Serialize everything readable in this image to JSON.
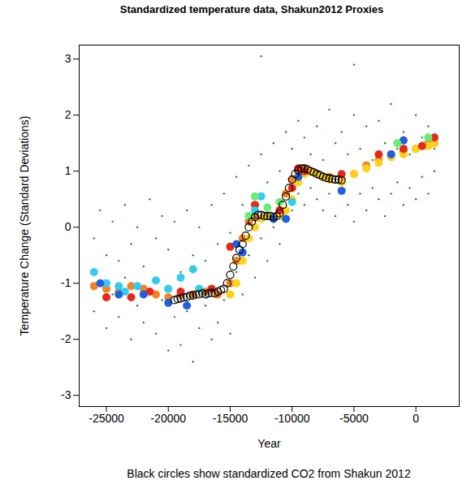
{
  "chart_data": {
    "type": "scatter",
    "title": "Standardized temperature data, Shakun2012 Proxies",
    "x_label": "Year",
    "y_label": "Temperature Change (Standard Deviations)",
    "caption": "Black circles show standardized CO2 from Shakun 2012",
    "xlim": [
      -27200,
      3500
    ],
    "ylim": [
      -3.2,
      3.25
    ],
    "xticks": [
      -25000,
      -20000,
      -15000,
      -10000,
      -5000,
      0
    ],
    "yticks": [
      -3,
      -2,
      -1,
      0,
      1,
      2,
      3
    ],
    "grid": false,
    "series": [
      {
        "color": "#1a8a1a",
        "marker": "dot",
        "x": [
          -26000,
          -26000,
          -25500,
          -25500,
          -25000,
          -25000,
          -24500,
          -24500,
          -24000,
          -24000,
          -23500,
          -23500,
          -23000,
          -23000,
          -22500,
          -22500,
          -22000,
          -22000,
          -21500,
          -21500,
          -21000,
          -21000,
          -20500,
          -20500,
          -20000,
          -20000,
          -19500,
          -19500,
          -19000,
          -19000,
          -18500,
          -18500,
          -18000,
          -18000,
          -17500,
          -17500,
          -17000,
          -17000,
          -16500,
          -16500,
          -16000,
          -16000,
          -15500,
          -15500,
          -15000,
          -15000,
          -14500,
          -14500,
          -14000,
          -14000,
          -13500,
          -13500,
          -13000,
          -13000,
          -12500,
          -12500,
          -12000,
          -12000,
          -11500,
          -11500,
          -11000,
          -11000,
          -10500,
          -10500,
          -10000,
          -10000,
          -9500,
          -9500,
          -9000,
          -9000,
          -8500,
          -8500,
          -8000,
          -8000,
          -7500,
          -7500,
          -7000,
          -7000,
          -6500,
          -6500,
          -6000,
          -6000,
          -5500,
          -5500,
          -5000,
          -5000,
          -4500,
          -4500,
          -4000,
          -4000,
          -3500,
          -3500,
          -3000,
          -3000,
          -2500,
          -2500,
          -2000,
          -2000,
          -1500,
          -1500,
          -1000,
          -1000,
          -500,
          -500,
          0,
          0,
          500,
          500,
          1000,
          1000,
          1500,
          1500,
          -12500,
          -5000
        ],
        "values": [
          -0.2,
          -1.5,
          0.3,
          -1.0,
          -0.5,
          -1.8,
          0.1,
          -1.2,
          -0.6,
          -1.6,
          0.4,
          -0.9,
          -0.3,
          -2.0,
          0.0,
          -1.4,
          -0.7,
          -1.7,
          0.5,
          -1.1,
          -0.2,
          -1.9,
          0.2,
          -1.3,
          -0.4,
          -2.2,
          0.1,
          -1.6,
          -0.8,
          -2.1,
          0.3,
          -1.5,
          -0.5,
          -2.4,
          0.0,
          -1.8,
          -0.6,
          -1.4,
          0.4,
          -2.0,
          -0.3,
          -1.7,
          0.6,
          -1.3,
          -0.1,
          -1.9,
          0.9,
          -0.8,
          0.4,
          -1.2,
          1.1,
          -0.5,
          0.6,
          -0.9,
          1.3,
          -0.2,
          0.8,
          -0.6,
          1.5,
          0.0,
          1.0,
          -0.3,
          1.7,
          0.2,
          1.4,
          0.3,
          1.9,
          0.6,
          1.6,
          0.4,
          1.3,
          0.7,
          1.8,
          0.5,
          1.2,
          0.3,
          2.1,
          0.6,
          1.5,
          0.2,
          1.7,
          0.7,
          1.3,
          0.4,
          2.0,
          0.1,
          1.4,
          0.6,
          1.8,
          0.3,
          1.2,
          0.7,
          1.9,
          0.5,
          1.5,
          0.2,
          2.2,
          0.6,
          1.4,
          0.8,
          1.7,
          0.4,
          1.3,
          0.7,
          2.0,
          0.5,
          1.6,
          0.9,
          1.8,
          0.6,
          1.4,
          1.0,
          3.05,
          2.9
        ]
      },
      {
        "color": "#f5821f",
        "marker": "circle",
        "x": [
          -26000,
          -25000,
          -24000,
          -23000,
          -22000,
          -21000,
          -20000,
          -19000,
          -18000,
          -17000,
          -16000,
          -15000,
          -14500,
          -14000,
          -13500,
          -13000,
          -12000,
          -11000,
          -10500,
          -10000,
          -9500,
          -9000,
          -8500,
          -8000,
          -7000,
          -6000,
          -5000,
          -4000,
          -3000,
          -2000,
          -1000,
          0,
          1000,
          1500
        ],
        "values": [
          -1.05,
          -1.1,
          -1.15,
          -1.05,
          -1.1,
          -1.2,
          -1.25,
          -1.2,
          -1.2,
          -1.15,
          -1.2,
          -1.0,
          -0.6,
          -0.2,
          0.1,
          0.2,
          0.2,
          0.3,
          0.6,
          0.85,
          1.0,
          1.05,
          1.0,
          0.95,
          0.9,
          0.85,
          0.95,
          1.1,
          1.2,
          1.3,
          1.35,
          1.4,
          1.5,
          1.5
        ]
      },
      {
        "color": "#ffd21a",
        "marker": "circle",
        "x": [
          -15000,
          -14500,
          -14000,
          -13500,
          -13000,
          -12500,
          -12000,
          -11500,
          -11000,
          -10500,
          -10000,
          -9500,
          -9000,
          -8500,
          -8000,
          -7500,
          -7000,
          -6000,
          -5000,
          -4000,
          -3000,
          -2000,
          -1000,
          0,
          1000,
          1500
        ],
        "values": [
          -1.2,
          -1.0,
          -0.6,
          -0.2,
          0.0,
          0.15,
          0.2,
          0.15,
          0.2,
          0.3,
          0.5,
          0.8,
          0.95,
          1.0,
          0.95,
          0.9,
          0.85,
          0.8,
          0.95,
          1.05,
          1.15,
          1.25,
          1.3,
          1.4,
          1.45,
          1.5
        ]
      },
      {
        "color": "#e8271c",
        "marker": "circle",
        "x": [
          -25000,
          -23000,
          -21500,
          -19000,
          -16500,
          -15000,
          -13000,
          -11000,
          -10000,
          -9500,
          -9000,
          -6000,
          -3000,
          -1000,
          500,
          1500
        ],
        "values": [
          -1.25,
          -1.25,
          -1.15,
          -1.15,
          -1.1,
          -0.35,
          0.4,
          0.3,
          0.7,
          1.05,
          1.0,
          0.95,
          1.3,
          1.4,
          1.45,
          1.6
        ]
      },
      {
        "color": "#33ccee",
        "marker": "circle",
        "x": [
          -26000,
          -25000,
          -24000,
          -23500,
          -22500,
          -21000,
          -20000,
          -19000,
          -18000,
          -17500,
          -13000,
          -12500,
          -10000
        ],
        "values": [
          -0.8,
          -1.0,
          -1.05,
          -1.15,
          -1.05,
          -0.95,
          -1.1,
          -0.9,
          -0.75,
          -1.1,
          0.3,
          0.55,
          0.45
        ]
      },
      {
        "color": "#1f5fe0",
        "marker": "circle",
        "x": [
          -25500,
          -24000,
          -22000,
          -20000,
          -18500,
          -14500,
          -14000,
          -11500,
          -10500,
          -9500,
          -6000,
          -2000,
          -1000
        ],
        "values": [
          -1.0,
          -1.2,
          -1.2,
          -1.35,
          -1.4,
          -0.3,
          -0.45,
          0.15,
          0.15,
          0.9,
          0.65,
          1.3,
          1.55
        ]
      },
      {
        "color": "#66ee77",
        "marker": "circle",
        "x": [
          -13500,
          -13000,
          -12000,
          -11000,
          -1500,
          1000
        ],
        "values": [
          0.2,
          0.55,
          0.35,
          0.45,
          1.5,
          1.6
        ]
      },
      {
        "color": "#000000",
        "marker": "open_circle",
        "x": [
          -19500,
          -19250,
          -19000,
          -18750,
          -18500,
          -18250,
          -18000,
          -17750,
          -17500,
          -17250,
          -17000,
          -16750,
          -16500,
          -16250,
          -16000,
          -15750,
          -15500,
          -15250,
          -15000,
          -14750,
          -14500,
          -14250,
          -14000,
          -13750,
          -13500,
          -13250,
          -13000,
          -12750,
          -12500,
          -12250,
          -12000,
          -11750,
          -11500,
          -11250,
          -11000,
          -10750,
          -10500,
          -10250,
          -10000,
          -9750,
          -9500,
          -9250,
          -9000,
          -8750,
          -8500,
          -8250,
          -8000,
          -7750,
          -7500,
          -7250,
          -7000,
          -6750,
          -6500,
          -6250,
          -6000
        ],
        "values": [
          -1.3,
          -1.28,
          -1.27,
          -1.25,
          -1.25,
          -1.22,
          -1.22,
          -1.2,
          -1.2,
          -1.18,
          -1.2,
          -1.18,
          -1.17,
          -1.18,
          -1.15,
          -1.12,
          -1.1,
          -1.0,
          -0.85,
          -0.7,
          -0.55,
          -0.4,
          -0.3,
          -0.15,
          0.0,
          0.1,
          0.18,
          0.22,
          0.22,
          0.2,
          0.2,
          0.2,
          0.18,
          0.2,
          0.25,
          0.4,
          0.55,
          0.7,
          0.85,
          0.95,
          1.02,
          1.05,
          1.05,
          1.03,
          1.0,
          0.98,
          0.95,
          0.93,
          0.9,
          0.88,
          0.87,
          0.86,
          0.85,
          0.85,
          0.84
        ]
      }
    ]
  }
}
